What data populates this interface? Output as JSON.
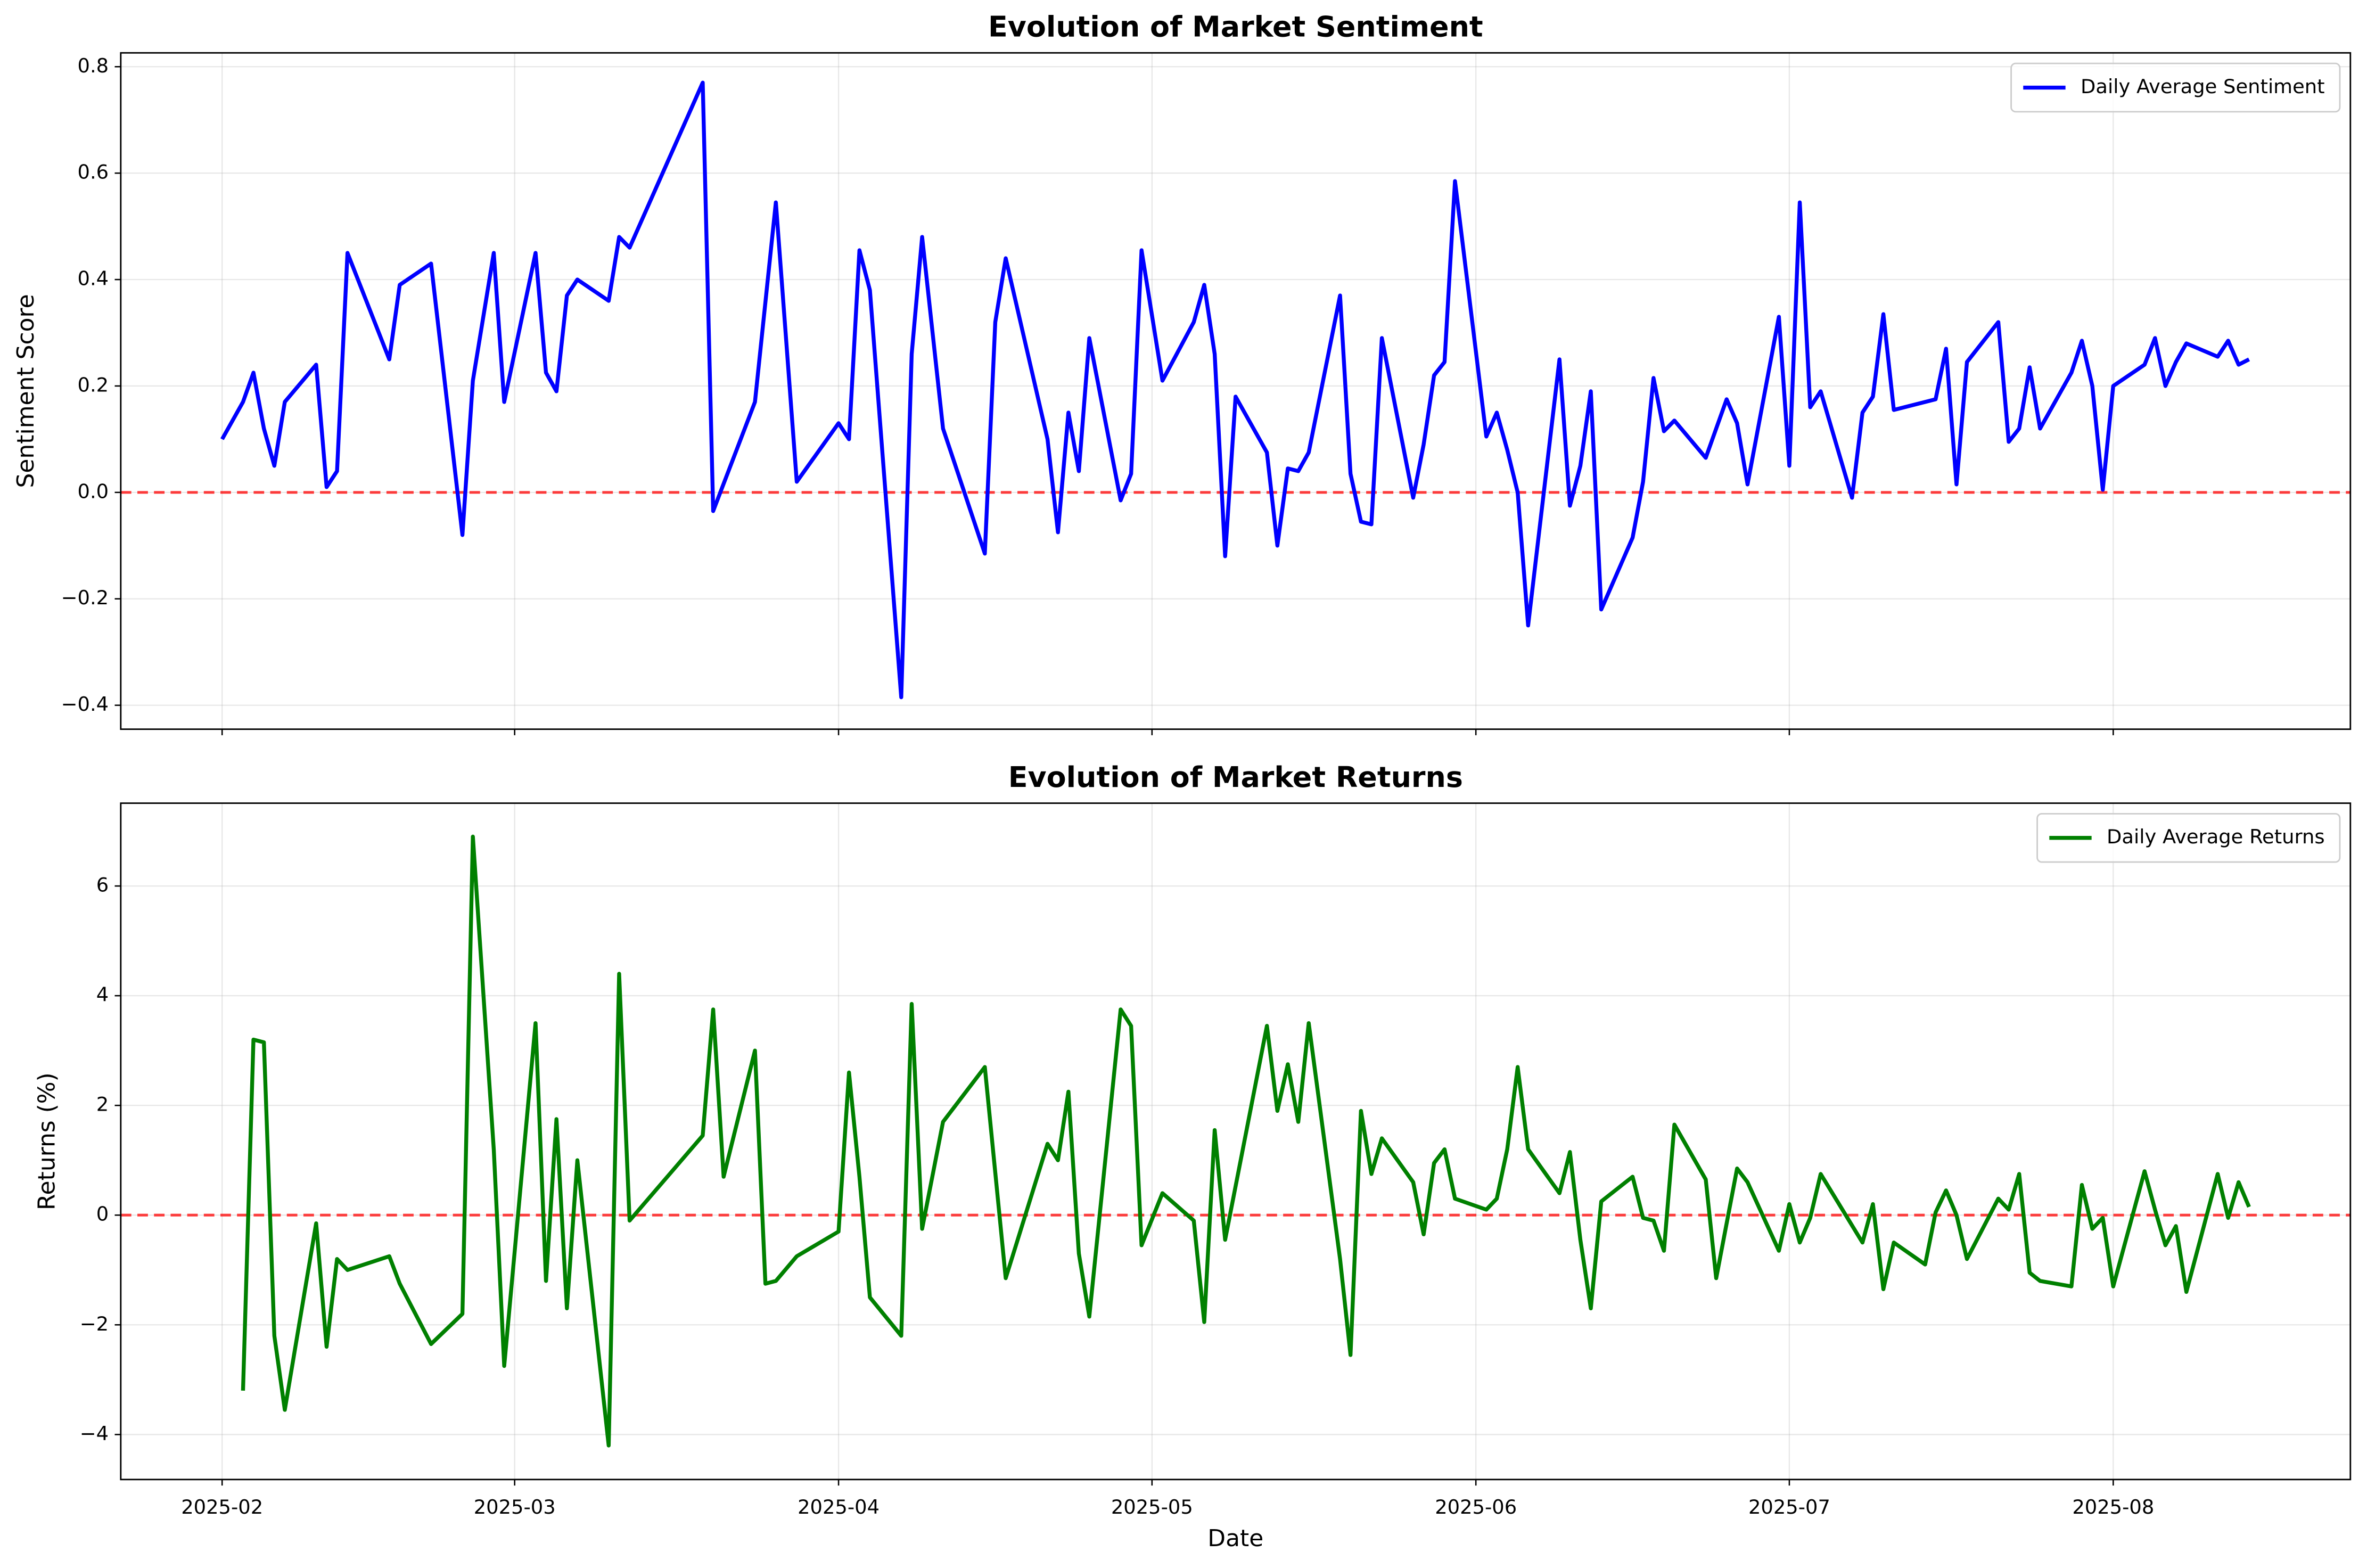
{
  "chart_data": [
    {
      "type": "line",
      "title": "Evolution of Market Sentiment",
      "ylabel": "Sentiment Score",
      "x": [
        0,
        2,
        3,
        4,
        5,
        6,
        9,
        10,
        11,
        12,
        16,
        17,
        20,
        23,
        24,
        26,
        27,
        30,
        31,
        32,
        33,
        34,
        37,
        38,
        39,
        46,
        47,
        51,
        53,
        55,
        59,
        60,
        61,
        62,
        65,
        66,
        67,
        69,
        73,
        74,
        75,
        79,
        80,
        81,
        82,
        83,
        86,
        87,
        88,
        90,
        93,
        94,
        95,
        96,
        97,
        100,
        101,
        102,
        103,
        104,
        107,
        108,
        109,
        110,
        111,
        114,
        115,
        116,
        117,
        118,
        121,
        122,
        123,
        124,
        125,
        128,
        129,
        130,
        131,
        132,
        135,
        136,
        137,
        138,
        139,
        142,
        144,
        145,
        146,
        149,
        150,
        151,
        152,
        153,
        156,
        157,
        158,
        159,
        160,
        164,
        165,
        166,
        167,
        170,
        171,
        172,
        173,
        174,
        177,
        178,
        179,
        180,
        181,
        184,
        185,
        186,
        187,
        188,
        191,
        192,
        193,
        194
      ],
      "series": [
        {
          "name": "Daily Average Sentiment",
          "color": "#0000ff",
          "values": [
            0.1,
            0.17,
            0.225,
            0.12,
            0.05,
            0.17,
            0.24,
            0.01,
            0.04,
            0.45,
            0.25,
            0.39,
            0.43,
            -0.08,
            0.21,
            0.45,
            0.17,
            0.45,
            0.225,
            0.19,
            0.37,
            0.4,
            0.36,
            0.48,
            0.46,
            0.77,
            -0.035,
            0.17,
            0.545,
            0.02,
            0.13,
            0.1,
            0.455,
            0.38,
            -0.385,
            0.26,
            0.48,
            0.12,
            -0.115,
            0.32,
            0.44,
            0.1,
            -0.075,
            0.15,
            0.04,
            0.29,
            -0.015,
            0.035,
            0.455,
            0.21,
            0.32,
            0.39,
            0.26,
            -0.12,
            0.18,
            0.075,
            -0.1,
            0.045,
            0.04,
            0.075,
            0.37,
            0.035,
            -0.055,
            -0.06,
            0.29,
            -0.01,
            0.09,
            0.22,
            0.245,
            0.585,
            0.105,
            0.15,
            0.08,
            0.0,
            -0.25,
            0.25,
            -0.025,
            0.05,
            0.19,
            -0.22,
            -0.085,
            0.02,
            0.215,
            0.115,
            0.135,
            0.065,
            0.175,
            0.13,
            0.015,
            0.33,
            0.05,
            0.545,
            0.16,
            0.19,
            -0.01,
            0.15,
            0.18,
            0.335,
            0.155,
            0.175,
            0.27,
            0.015,
            0.245,
            0.32,
            0.095,
            0.12,
            0.235,
            0.12,
            0.225,
            0.285,
            0.2,
            0.005,
            0.2,
            0.24,
            0.29,
            0.2,
            0.245,
            0.28,
            0.255,
            0.285,
            0.24,
            0.25
          ]
        }
      ],
      "xlim": [
        -9.7,
        203.7
      ],
      "ylim": [
        -0.445,
        0.826
      ],
      "yticks": [
        {
          "value": -0.4,
          "label": "−0.4"
        },
        {
          "value": -0.2,
          "label": "−0.2"
        },
        {
          "value": 0,
          "label": "0.0"
        },
        0.2,
        0.4,
        0.6,
        0.8
      ],
      "reference_line": {
        "value": 0,
        "color": "#ff0000"
      },
      "grid": true,
      "legend": "upper right"
    },
    {
      "type": "line",
      "title": "Evolution of Market Returns",
      "ylabel": "Returns (%)",
      "xlabel": "Date",
      "x": [
        2,
        3,
        4,
        5,
        6,
        9,
        10,
        11,
        12,
        16,
        17,
        20,
        23,
        24,
        26,
        27,
        30,
        31,
        32,
        33,
        34,
        37,
        38,
        39,
        46,
        47,
        48,
        51,
        52,
        53,
        55,
        59,
        60,
        61,
        62,
        65,
        66,
        67,
        69,
        73,
        75,
        79,
        80,
        81,
        82,
        83,
        86,
        87,
        88,
        90,
        93,
        94,
        95,
        96,
        100,
        101,
        102,
        103,
        104,
        107,
        108,
        109,
        110,
        111,
        114,
        115,
        116,
        117,
        118,
        121,
        122,
        123,
        124,
        125,
        128,
        129,
        130,
        131,
        132,
        135,
        136,
        137,
        138,
        139,
        142,
        143,
        145,
        146,
        149,
        150,
        151,
        152,
        153,
        157,
        158,
        159,
        160,
        163,
        164,
        165,
        166,
        167,
        170,
        171,
        172,
        173,
        174,
        177,
        178,
        179,
        180,
        181,
        184,
        185,
        186,
        187,
        188,
        191,
        192,
        193,
        194
      ],
      "series": [
        {
          "name": "Daily Average Returns",
          "color": "#008000",
          "values": [
            -3.2,
            3.2,
            3.15,
            -2.2,
            -3.55,
            -0.15,
            -2.4,
            -0.8,
            -1.0,
            -0.75,
            -1.25,
            -2.35,
            -1.8,
            6.9,
            1.2,
            -2.75,
            3.5,
            -1.2,
            1.75,
            -1.7,
            1.0,
            -4.2,
            4.4,
            -0.1,
            1.45,
            3.75,
            0.7,
            3.0,
            -1.25,
            -1.2,
            -0.75,
            -0.3,
            2.6,
            0.7,
            -1.5,
            -2.2,
            3.85,
            -0.25,
            1.7,
            2.7,
            -1.15,
            1.3,
            1.0,
            2.25,
            -0.7,
            -1.85,
            3.75,
            3.45,
            -0.55,
            0.4,
            -0.1,
            -1.95,
            1.55,
            -0.45,
            3.45,
            1.9,
            2.75,
            1.7,
            3.5,
            -0.8,
            -2.55,
            1.9,
            0.75,
            1.4,
            0.6,
            -0.35,
            0.95,
            1.2,
            0.3,
            0.1,
            0.3,
            1.2,
            2.7,
            1.2,
            0.4,
            1.15,
            -0.45,
            -1.7,
            0.25,
            0.7,
            -0.05,
            -0.1,
            -0.65,
            1.65,
            0.65,
            -1.15,
            0.85,
            0.6,
            -0.65,
            0.2,
            -0.5,
            -0.05,
            0.75,
            -0.5,
            0.2,
            -1.35,
            -0.5,
            -0.9,
            0.05,
            0.45,
            0.0,
            -0.8,
            0.3,
            0.1,
            0.75,
            -1.05,
            -1.2,
            -1.3,
            0.55,
            -0.25,
            -0.05,
            -1.3,
            0.8,
            0.1,
            -0.55,
            -0.2,
            -1.4,
            0.75,
            -0.05,
            0.6,
            0.15
          ]
        }
      ],
      "xlim": [
        -9.7,
        203.7
      ],
      "xticks": [
        {
          "value": 0,
          "label": "2025-02"
        },
        {
          "value": 28,
          "label": "2025-03"
        },
        {
          "value": 59,
          "label": "2025-04"
        },
        {
          "value": 89,
          "label": "2025-05"
        },
        {
          "value": 120,
          "label": "2025-06"
        },
        {
          "value": 150,
          "label": "2025-07"
        },
        {
          "value": 181,
          "label": "2025-08"
        }
      ],
      "ylim": [
        -4.82,
        7.51
      ],
      "yticks": [
        {
          "value": -4,
          "label": "−4"
        },
        {
          "value": -2,
          "label": "−2"
        },
        0,
        2,
        4,
        6
      ],
      "reference_line": {
        "value": 0,
        "color": "#ff0000"
      },
      "grid": true,
      "legend": "upper right"
    }
  ]
}
